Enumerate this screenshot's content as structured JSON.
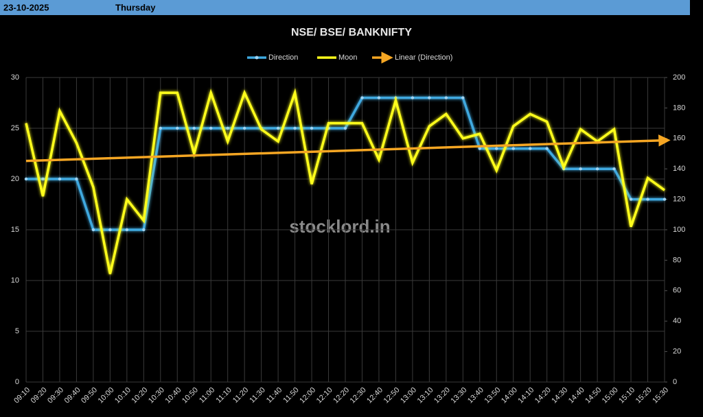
{
  "header": {
    "date": "23-10-2025",
    "day": "Thursday"
  },
  "chart_data": {
    "type": "line",
    "title": "NSE/ BSE/ BANKNIFTY",
    "watermark": "stocklord.in",
    "categories": [
      "09:10",
      "09:20",
      "09:30",
      "09:40",
      "09:50",
      "10:00",
      "10:10",
      "10:20",
      "10:30",
      "10:40",
      "10:50",
      "11:00",
      "11:10",
      "11:20",
      "11:30",
      "11:40",
      "11:50",
      "12:00",
      "12:10",
      "12:20",
      "12:30",
      "12:40",
      "12:50",
      "13:00",
      "13:10",
      "13:20",
      "13:30",
      "13:40",
      "13:50",
      "14:00",
      "14:10",
      "14:20",
      "14:30",
      "14:40",
      "14:50",
      "15:00",
      "15:10",
      "15:20",
      "15:30"
    ],
    "series": [
      {
        "name": "Direction",
        "color": "#3fa9e0",
        "values": [
          20,
          20,
          20,
          20,
          15,
          15,
          15,
          15,
          25,
          25,
          25,
          25,
          25,
          25,
          25,
          25,
          25,
          25,
          25,
          25,
          28,
          28,
          28,
          28,
          28,
          28,
          28,
          23,
          23,
          23,
          23,
          23,
          21,
          21,
          21,
          21,
          18,
          18,
          18
        ]
      },
      {
        "name": "Moon",
        "color": "#ffff1a",
        "axis": "y2",
        "values": [
          170,
          122,
          178,
          157,
          128,
          71,
          120,
          106,
          190,
          190,
          150,
          190,
          158,
          190,
          166,
          158,
          190,
          130,
          170,
          170,
          170,
          146,
          185,
          144,
          168,
          176,
          160,
          163,
          139,
          168,
          176,
          171,
          141,
          166,
          158,
          166,
          102,
          134,
          126
        ]
      }
    ],
    "trendline": {
      "name": "Linear (Direction)",
      "color": "#f5a623"
    },
    "ylim": [
      0,
      30
    ],
    "yticks": [
      0,
      5,
      10,
      15,
      20,
      25,
      30
    ],
    "y2lim": [
      0,
      200
    ],
    "y2ticks": [
      0,
      20,
      40,
      60,
      80,
      100,
      120,
      140,
      160,
      180,
      200
    ],
    "grid": true
  }
}
